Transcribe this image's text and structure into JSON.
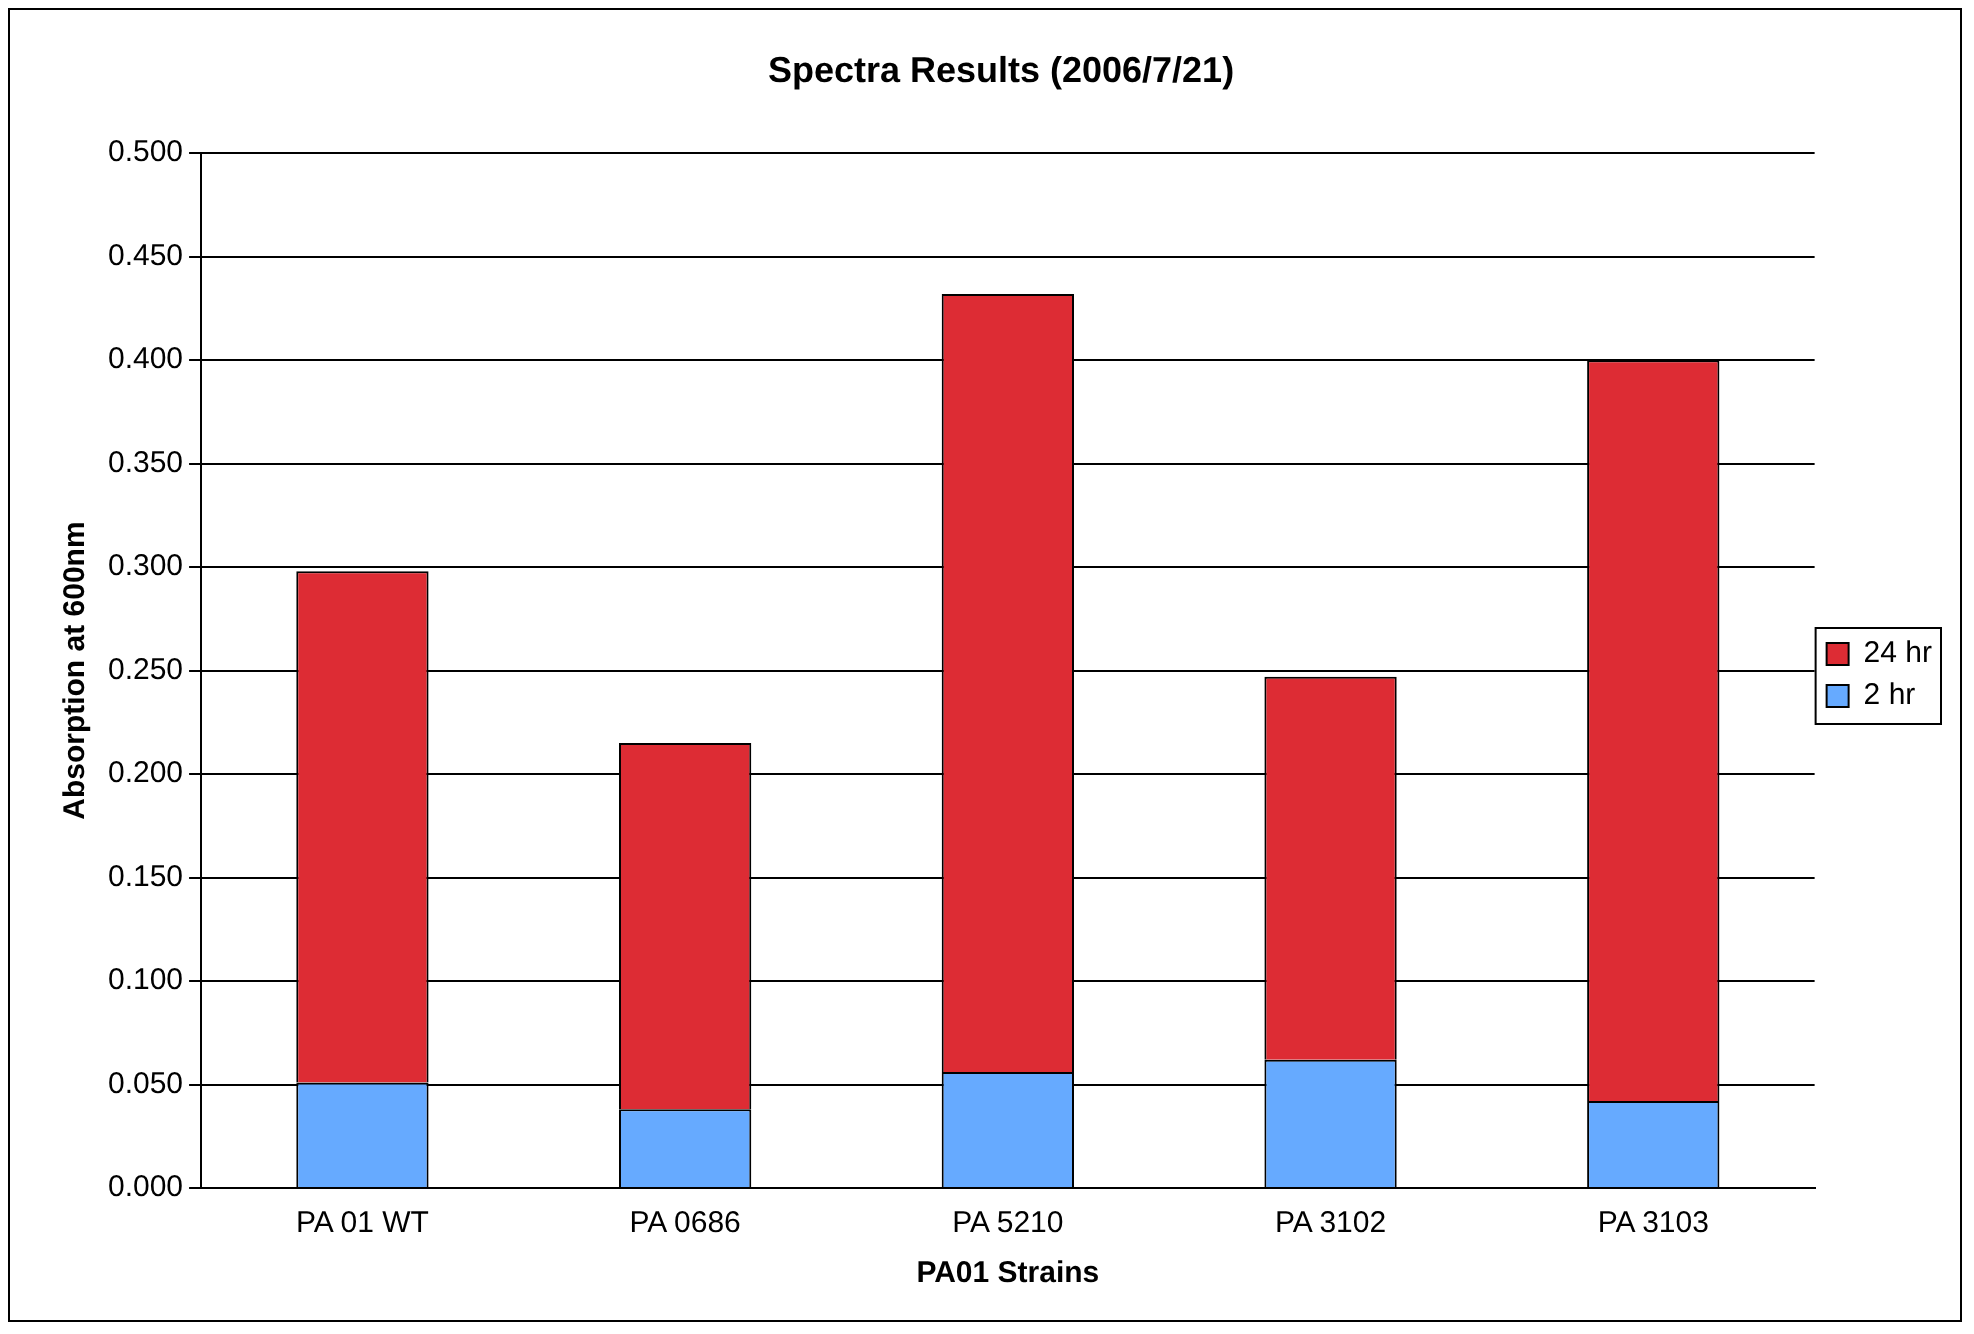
{
  "chart_data": {
    "type": "bar",
    "title": "Spectra Results (2006/7/21)",
    "xlabel": "PA01 Strains",
    "ylabel": "Absorption at 600nm",
    "categories": [
      "PA 01 WT",
      "PA 0686",
      "PA 5210",
      "PA 3102",
      "PA 3103"
    ],
    "stacked": true,
    "series": [
      {
        "name": "2 hr",
        "color": "#66aaff",
        "values": [
          0.051,
          0.038,
          0.056,
          0.062,
          0.042
        ]
      },
      {
        "name": "24 hr",
        "color": "#dd2c34",
        "values": [
          0.247,
          0.177,
          0.376,
          0.185,
          0.358
        ]
      }
    ],
    "ylim": [
      0,
      0.5
    ],
    "yticks": [
      {
        "value": 0,
        "label": "0.000"
      },
      {
        "value": 0.05,
        "label": "0.050"
      },
      {
        "value": 0.1,
        "label": "0.100"
      },
      {
        "value": 0.15,
        "label": "0.150"
      },
      {
        "value": 0.2,
        "label": "0.200"
      },
      {
        "value": 0.25,
        "label": "0.250"
      },
      {
        "value": 0.3,
        "label": "0.300"
      },
      {
        "value": 0.35,
        "label": "0.350"
      },
      {
        "value": 0.4,
        "label": "0.400"
      },
      {
        "value": 0.45,
        "label": "0.450"
      },
      {
        "value": 0.5,
        "label": "0.500"
      }
    ],
    "grid": "y",
    "legend": "right"
  }
}
